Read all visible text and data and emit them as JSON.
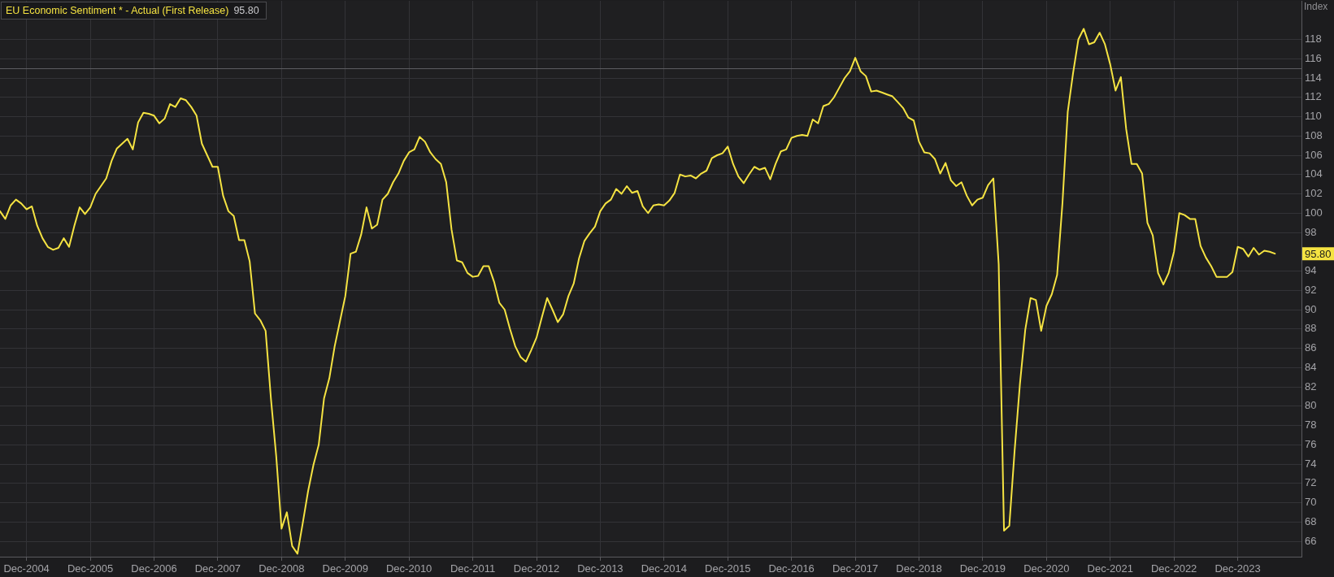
{
  "chart_data": {
    "type": "line",
    "ylabel": "Index",
    "legend": "top left",
    "grid": true,
    "x": [
      "2004-07",
      "2004-08",
      "2004-09",
      "2004-10",
      "2004-11",
      "2004-12",
      "2005-01",
      "2005-02",
      "2005-03",
      "2005-04",
      "2005-05",
      "2005-06",
      "2005-07",
      "2005-08",
      "2005-09",
      "2005-10",
      "2005-11",
      "2005-12",
      "2006-01",
      "2006-02",
      "2006-03",
      "2006-04",
      "2006-05",
      "2006-06",
      "2006-07",
      "2006-08",
      "2006-09",
      "2006-10",
      "2006-11",
      "2006-12",
      "2007-01",
      "2007-02",
      "2007-03",
      "2007-04",
      "2007-05",
      "2007-06",
      "2007-07",
      "2007-08",
      "2007-09",
      "2007-10",
      "2007-11",
      "2007-12",
      "2008-01",
      "2008-02",
      "2008-03",
      "2008-04",
      "2008-05",
      "2008-06",
      "2008-07",
      "2008-08",
      "2008-09",
      "2008-10",
      "2008-11",
      "2008-12",
      "2009-01",
      "2009-02",
      "2009-03",
      "2009-04",
      "2009-05",
      "2009-06",
      "2009-07",
      "2009-08",
      "2009-09",
      "2009-10",
      "2009-11",
      "2009-12",
      "2010-01",
      "2010-02",
      "2010-03",
      "2010-04",
      "2010-05",
      "2010-06",
      "2010-07",
      "2010-08",
      "2010-09",
      "2010-10",
      "2010-11",
      "2010-12",
      "2011-01",
      "2011-02",
      "2011-03",
      "2011-04",
      "2011-05",
      "2011-06",
      "2011-07",
      "2011-08",
      "2011-09",
      "2011-10",
      "2011-11",
      "2011-12",
      "2012-01",
      "2012-02",
      "2012-03",
      "2012-04",
      "2012-05",
      "2012-06",
      "2012-07",
      "2012-08",
      "2012-09",
      "2012-10",
      "2012-11",
      "2012-12",
      "2013-01",
      "2013-02",
      "2013-03",
      "2013-04",
      "2013-05",
      "2013-06",
      "2013-07",
      "2013-08",
      "2013-09",
      "2013-10",
      "2013-11",
      "2013-12",
      "2014-01",
      "2014-02",
      "2014-03",
      "2014-04",
      "2014-05",
      "2014-06",
      "2014-07",
      "2014-08",
      "2014-09",
      "2014-10",
      "2014-11",
      "2014-12",
      "2015-01",
      "2015-02",
      "2015-03",
      "2015-04",
      "2015-05",
      "2015-06",
      "2015-07",
      "2015-08",
      "2015-09",
      "2015-10",
      "2015-11",
      "2015-12",
      "2016-01",
      "2016-02",
      "2016-03",
      "2016-04",
      "2016-05",
      "2016-06",
      "2016-07",
      "2016-08",
      "2016-09",
      "2016-10",
      "2016-11",
      "2016-12",
      "2017-01",
      "2017-02",
      "2017-03",
      "2017-04",
      "2017-05",
      "2017-06",
      "2017-07",
      "2017-08",
      "2017-09",
      "2017-10",
      "2017-11",
      "2017-12",
      "2018-01",
      "2018-02",
      "2018-03",
      "2018-04",
      "2018-05",
      "2018-06",
      "2018-07",
      "2018-08",
      "2018-09",
      "2018-10",
      "2018-11",
      "2018-12",
      "2019-01",
      "2019-02",
      "2019-03",
      "2019-04",
      "2019-05",
      "2019-06",
      "2019-07",
      "2019-08",
      "2019-09",
      "2019-10",
      "2019-11",
      "2019-12",
      "2020-01",
      "2020-02",
      "2020-03",
      "2020-04",
      "2020-05",
      "2020-06",
      "2020-07",
      "2020-08",
      "2020-09",
      "2020-10",
      "2020-11",
      "2020-12",
      "2021-01",
      "2021-02",
      "2021-03",
      "2021-04",
      "2021-05",
      "2021-06",
      "2021-07",
      "2021-08",
      "2021-09",
      "2021-10",
      "2021-11",
      "2021-12",
      "2022-01",
      "2022-02",
      "2022-03",
      "2022-04",
      "2022-05",
      "2022-06",
      "2022-07",
      "2022-08",
      "2022-09",
      "2022-10",
      "2022-11",
      "2022-12",
      "2023-01",
      "2023-02",
      "2023-03",
      "2023-04",
      "2023-05",
      "2023-06",
      "2023-07",
      "2023-08",
      "2023-09",
      "2023-10",
      "2023-11",
      "2023-12",
      "2024-01",
      "2024-02",
      "2024-03",
      "2024-04",
      "2024-05",
      "2024-06",
      "2024-07"
    ],
    "series": [
      {
        "name": "EU Economic Sentiment * - Actual (First Release)",
        "color": "#f5e342",
        "values": [
          100.2,
          99.4,
          100.8,
          101.4,
          101.0,
          100.4,
          100.7,
          98.7,
          97.4,
          96.5,
          96.2,
          96.4,
          97.4,
          96.5,
          98.7,
          100.6,
          99.9,
          100.6,
          102.0,
          102.8,
          103.6,
          105.4,
          106.7,
          107.2,
          107.7,
          106.6,
          109.4,
          110.4,
          110.3,
          110.1,
          109.3,
          109.8,
          111.3,
          111.0,
          111.9,
          111.7,
          111.0,
          110.1,
          107.2,
          106.0,
          104.8,
          104.8,
          101.8,
          100.2,
          99.7,
          97.2,
          97.2,
          95.0,
          89.6,
          88.9,
          87.8,
          80.8,
          74.8,
          67.3,
          69.0,
          65.5,
          64.7,
          67.9,
          71.2,
          73.9,
          76.0,
          80.8,
          82.9,
          86.2,
          88.8,
          91.4,
          95.8,
          96.0,
          97.8,
          100.6,
          98.4,
          98.8,
          101.4,
          102.0,
          103.2,
          104.1,
          105.4,
          106.3,
          106.6,
          107.9,
          107.4,
          106.3,
          105.6,
          105.1,
          103.2,
          98.3,
          95.1,
          94.9,
          93.8,
          93.4,
          93.5,
          94.5,
          94.5,
          92.9,
          90.7,
          90.0,
          88.0,
          86.2,
          85.1,
          84.6,
          85.8,
          87.1,
          89.2,
          91.2,
          90.0,
          88.7,
          89.5,
          91.4,
          92.7,
          95.3,
          97.1,
          97.9,
          98.6,
          100.2,
          101.0,
          101.4,
          102.5,
          102.0,
          102.8,
          102.1,
          102.3,
          100.7,
          100.0,
          100.8,
          100.9,
          100.8,
          101.3,
          102.1,
          104.0,
          103.8,
          103.9,
          103.6,
          104.1,
          104.4,
          105.7,
          106.0,
          106.2,
          106.9,
          105.1,
          103.8,
          103.1,
          104.0,
          104.8,
          104.5,
          104.7,
          103.5,
          105.1,
          106.4,
          106.6,
          107.8,
          108.0,
          108.1,
          108.0,
          109.7,
          109.3,
          111.1,
          111.3,
          112.0,
          113.0,
          114.0,
          114.7,
          116.1,
          114.7,
          114.2,
          112.6,
          112.7,
          112.5,
          112.3,
          112.1,
          111.5,
          110.9,
          109.9,
          109.6,
          107.4,
          106.3,
          106.2,
          105.6,
          104.1,
          105.2,
          103.4,
          102.8,
          103.2,
          101.8,
          100.8,
          101.4,
          101.6,
          102.9,
          103.6,
          94.7,
          67.1,
          67.6,
          75.4,
          82.3,
          87.9,
          91.2,
          91.0,
          87.8,
          90.4,
          91.6,
          93.6,
          101.0,
          110.5,
          114.5,
          118.0,
          119.1,
          117.5,
          117.7,
          118.7,
          117.5,
          115.4,
          112.7,
          114.1,
          108.7,
          105.1,
          105.1,
          104.1,
          99.0,
          97.7,
          93.8,
          92.6,
          93.8,
          96.0,
          100.0,
          99.8,
          99.4,
          99.4,
          96.6,
          95.4,
          94.5,
          93.4,
          93.4,
          93.4,
          93.9,
          96.5,
          96.3,
          95.5,
          96.4,
          95.7,
          96.1,
          96.0,
          95.8
        ]
      }
    ],
    "xlim": [
      "2004-07",
      "2024-12"
    ],
    "xticks": [
      {
        "value": "2004-12",
        "label": "Dec-2004"
      },
      {
        "value": "2005-12",
        "label": "Dec-2005"
      },
      {
        "value": "2006-12",
        "label": "Dec-2006"
      },
      {
        "value": "2007-12",
        "label": "Dec-2007"
      },
      {
        "value": "2008-12",
        "label": "Dec-2008"
      },
      {
        "value": "2009-12",
        "label": "Dec-2009"
      },
      {
        "value": "2010-12",
        "label": "Dec-2010"
      },
      {
        "value": "2011-12",
        "label": "Dec-2011"
      },
      {
        "value": "2012-12",
        "label": "Dec-2012"
      },
      {
        "value": "2013-12",
        "label": "Dec-2013"
      },
      {
        "value": "2014-12",
        "label": "Dec-2014"
      },
      {
        "value": "2015-12",
        "label": "Dec-2015"
      },
      {
        "value": "2016-12",
        "label": "Dec-2016"
      },
      {
        "value": "2017-12",
        "label": "Dec-2017"
      },
      {
        "value": "2018-12",
        "label": "Dec-2018"
      },
      {
        "value": "2019-12",
        "label": "Dec-2019"
      },
      {
        "value": "2020-12",
        "label": "Dec-2020"
      },
      {
        "value": "2021-12",
        "label": "Dec-2021"
      },
      {
        "value": "2022-12",
        "label": "Dec-2022"
      },
      {
        "value": "2023-12",
        "label": "Dec-2023"
      }
    ],
    "ylim": [
      64.4,
      122
    ],
    "yticks": [
      66,
      68,
      70,
      72,
      74,
      76,
      78,
      80,
      82,
      84,
      86,
      88,
      90,
      92,
      94,
      98,
      100,
      102,
      104,
      106,
      108,
      110,
      112,
      114,
      116,
      118
    ],
    "ref_lines": [
      {
        "axis": "y",
        "value": 115,
        "color": "#5c5c60"
      }
    ],
    "annotations": [
      "95.80",
      {
        "text": "95.80",
        "y": 95.8
      }
    ]
  }
}
